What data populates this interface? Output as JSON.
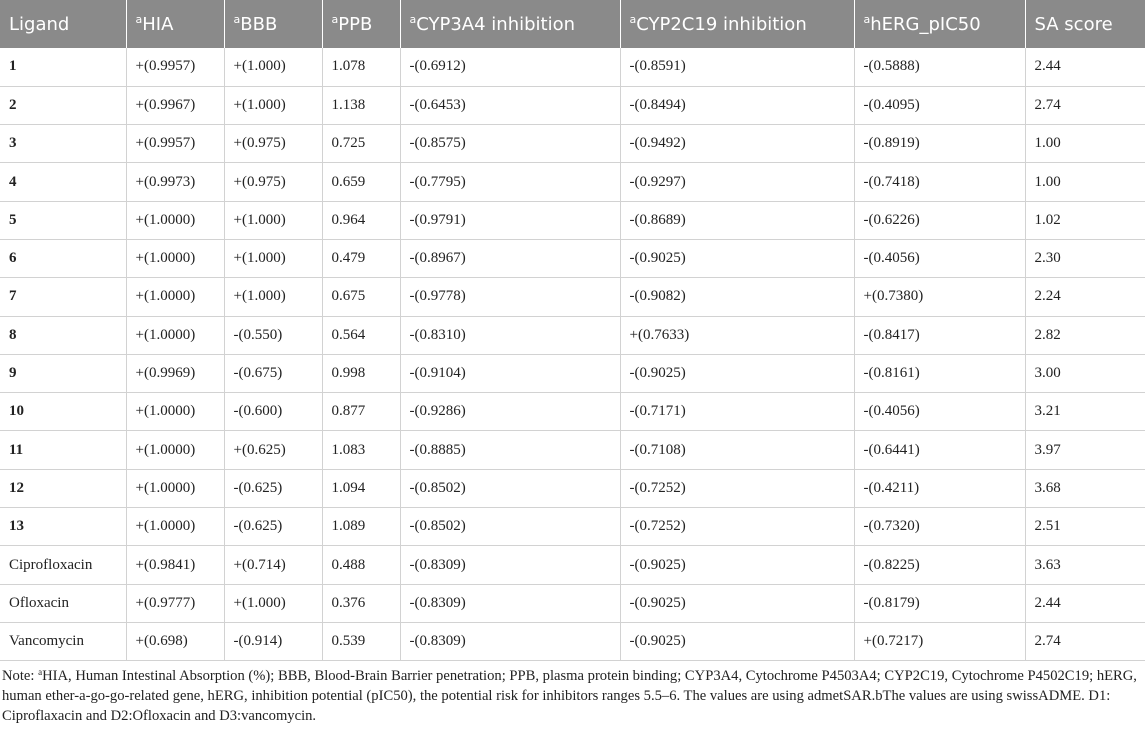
{
  "table": {
    "headers": [
      {
        "sup": "",
        "text": "Ligand"
      },
      {
        "sup": "a",
        "text": "HIA"
      },
      {
        "sup": "a",
        "text": "BBB"
      },
      {
        "sup": "a",
        "text": "PPB"
      },
      {
        "sup": "a",
        "text": "CYP3A4 inhibition"
      },
      {
        "sup": "a",
        "text": "CYP2C19 inhibition"
      },
      {
        "sup": "a",
        "text": "hERG_pIC50"
      },
      {
        "sup": "",
        "text": "SA score"
      }
    ],
    "rows": [
      {
        "ligand": "1",
        "cells": [
          "+(0.9957)",
          "+(1.000)",
          "1.078",
          "-(0.6912)",
          "-(0.8591)",
          "-(0.5888)",
          "2.44"
        ]
      },
      {
        "ligand": "2",
        "cells": [
          "+(0.9967)",
          "+(1.000)",
          "1.138",
          "-(0.6453)",
          "-(0.8494)",
          "-(0.4095)",
          "2.74"
        ]
      },
      {
        "ligand": "3",
        "cells": [
          "+(0.9957)",
          "+(0.975)",
          "0.725",
          "-(0.8575)",
          "-(0.9492)",
          "-(0.8919)",
          "1.00"
        ]
      },
      {
        "ligand": "4",
        "cells": [
          "+(0.9973)",
          "+(0.975)",
          "0.659",
          "-(0.7795)",
          "-(0.9297)",
          "-(0.7418)",
          "1.00"
        ]
      },
      {
        "ligand": "5",
        "cells": [
          "+(1.0000)",
          "+(1.000)",
          "0.964",
          "-(0.9791)",
          "-(0.8689)",
          "-(0.6226)",
          "1.02"
        ]
      },
      {
        "ligand": "6",
        "cells": [
          "+(1.0000)",
          "+(1.000)",
          "0.479",
          "-(0.8967)",
          "-(0.9025)",
          "-(0.4056)",
          "2.30"
        ]
      },
      {
        "ligand": "7",
        "cells": [
          "+(1.0000)",
          "+(1.000)",
          "0.675",
          "-(0.9778)",
          "-(0.9082)",
          "+(0.7380)",
          "2.24"
        ]
      },
      {
        "ligand": "8",
        "cells": [
          "+(1.0000)",
          "-(0.550)",
          "0.564",
          "-(0.8310)",
          "+(0.7633)",
          "-(0.8417)",
          "2.82"
        ]
      },
      {
        "ligand": "9",
        "cells": [
          "+(0.9969)",
          "-(0.675)",
          "0.998",
          "-(0.9104)",
          "-(0.9025)",
          "-(0.8161)",
          "3.00"
        ]
      },
      {
        "ligand": "10",
        "cells": [
          "+(1.0000)",
          "-(0.600)",
          "0.877",
          "-(0.9286)",
          "-(0.7171)",
          "-(0.4056)",
          "3.21"
        ]
      },
      {
        "ligand": "11",
        "cells": [
          "+(1.0000)",
          "+(0.625)",
          "1.083",
          "-(0.8885)",
          "-(0.7108)",
          "-(0.6441)",
          "3.97"
        ]
      },
      {
        "ligand": "12",
        "cells": [
          "+(1.0000)",
          "-(0.625)",
          "1.094",
          "-(0.8502)",
          "-(0.7252)",
          "-(0.4211)",
          "3.68"
        ]
      },
      {
        "ligand": "13",
        "cells": [
          "+(1.0000)",
          "-(0.625)",
          "1.089",
          "-(0.8502)",
          "-(0.7252)",
          "-(0.7320)",
          "2.51"
        ]
      },
      {
        "ligand": "Ciprofloxacin",
        "cells": [
          "+(0.9841)",
          "+(0.714)",
          "0.488",
          "-(0.8309)",
          "-(0.9025)",
          "-(0.8225)",
          "3.63"
        ]
      },
      {
        "ligand": "Ofloxacin",
        "cells": [
          "+(0.9777)",
          "+(1.000)",
          "0.376",
          "-(0.8309)",
          "-(0.9025)",
          "-(0.8179)",
          "2.44"
        ]
      },
      {
        "ligand": "Vancomycin",
        "cells": [
          "+(0.698)",
          "-(0.914)",
          "0.539",
          "-(0.8309)",
          "-(0.9025)",
          "+(0.7217)",
          "2.74"
        ]
      }
    ]
  },
  "note": {
    "prefix": "Note: ",
    "sup": "a",
    "text": "HIA, Human Intestinal Absorption (%); BBB, Blood-Brain Barrier penetration; PPB, plasma protein binding; CYP3A4, Cytochrome P4503A4; CYP2C19, Cytochrome P4502C19; hERG, human ether-a-go-go-related gene, hERG, inhibition potential (pIC50), the potential risk for inhibitors ranges 5.5–6. The values are using admetSAR.bThe values are using swissADME. D1: Ciproflaxacin and D2:Ofloxacin and D3:vancomycin."
  }
}
